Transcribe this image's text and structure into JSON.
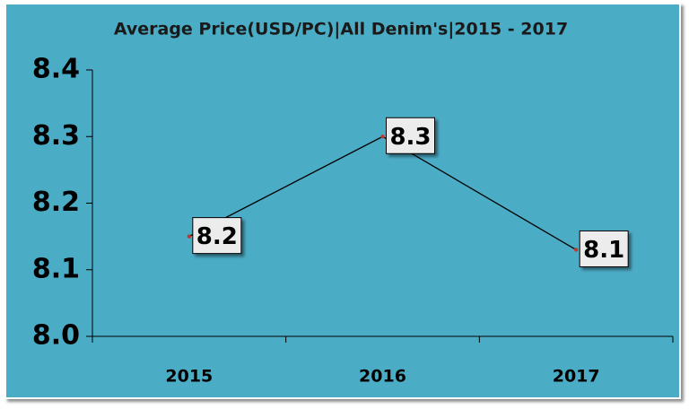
{
  "chart_data": {
    "type": "line",
    "title": "Average Price(USD/PC)|All Denim's|2015 - 2017",
    "categories": [
      "2015",
      "2016",
      "2017"
    ],
    "series": [
      {
        "name": "Average Price",
        "color": "#000000",
        "values": [
          8.15,
          8.3,
          8.13
        ],
        "value_labels": [
          "8.2",
          "8.3",
          "8.1"
        ]
      }
    ],
    "ylim": [
      8,
      8.4
    ],
    "yticks": [
      {
        "value": 8,
        "label": "8.0"
      },
      8.1,
      8.2,
      8.3,
      8.4
    ],
    "marker_color": "#c0392b",
    "background": "#4bacc6"
  }
}
